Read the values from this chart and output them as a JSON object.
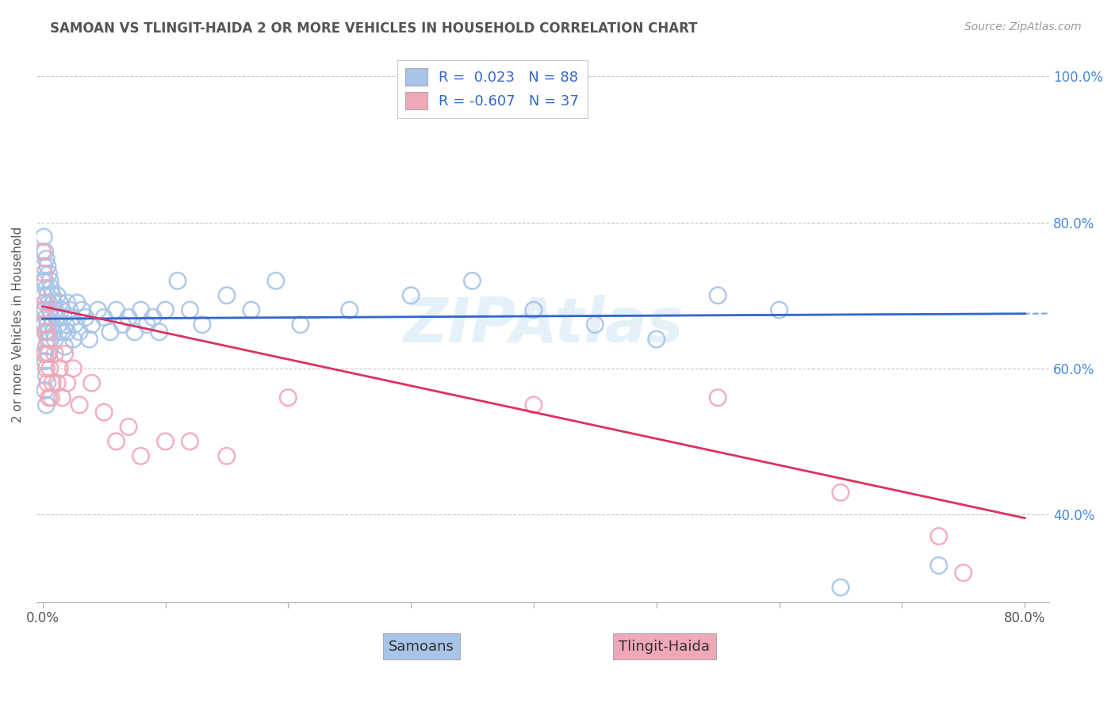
{
  "title": "SAMOAN VS TLINGIT-HAIDA 2 OR MORE VEHICLES IN HOUSEHOLD CORRELATION CHART",
  "source": "Source: ZipAtlas.com",
  "ylabel": "2 or more Vehicles in Household",
  "xlabel_samoans": "Samoans",
  "xlabel_tlingit": "Tlingit-Haida",
  "xlim": [
    -0.005,
    0.82
  ],
  "ylim": [
    0.28,
    1.04
  ],
  "xtick_positions": [
    0.0,
    0.1,
    0.2,
    0.3,
    0.4,
    0.5,
    0.6,
    0.7,
    0.8
  ],
  "xticklabels_show": [
    "0.0%",
    "",
    "",
    "",
    "",
    "",
    "",
    "",
    "80.0%"
  ],
  "yticks": [
    0.4,
    0.6,
    0.8,
    1.0
  ],
  "yticklabels": [
    "40.0%",
    "60.0%",
    "80.0%",
    "100.0%"
  ],
  "samoans_R": 0.023,
  "samoans_N": 88,
  "tlingit_R": -0.607,
  "tlingit_N": 37,
  "samoan_color": "#a8c4e8",
  "tlingit_color": "#f0a8b8",
  "samoan_line_color": "#3366cc",
  "tlingit_line_color": "#e03060",
  "ytick_color": "#4488dd",
  "background_color": "#ffffff",
  "grid_color": "#c8c8c8",
  "watermark_color": "#cce4f4",
  "title_color": "#555555",
  "source_color": "#999999",
  "legend_text_color": "#3366cc",
  "samoan_scatter": {
    "x": [
      0.0,
      0.0,
      0.0,
      0.001,
      0.001,
      0.001,
      0.001,
      0.001,
      0.002,
      0.002,
      0.002,
      0.002,
      0.002,
      0.002,
      0.003,
      0.003,
      0.003,
      0.003,
      0.003,
      0.003,
      0.004,
      0.004,
      0.004,
      0.004,
      0.005,
      0.005,
      0.005,
      0.006,
      0.006,
      0.006,
      0.007,
      0.007,
      0.008,
      0.008,
      0.009,
      0.009,
      0.01,
      0.01,
      0.011,
      0.012,
      0.013,
      0.014,
      0.015,
      0.016,
      0.017,
      0.018,
      0.019,
      0.02,
      0.02,
      0.022,
      0.024,
      0.025,
      0.026,
      0.028,
      0.03,
      0.032,
      0.035,
      0.038,
      0.04,
      0.045,
      0.05,
      0.055,
      0.06,
      0.065,
      0.07,
      0.075,
      0.08,
      0.085,
      0.09,
      0.095,
      0.1,
      0.11,
      0.12,
      0.13,
      0.15,
      0.17,
      0.19,
      0.21,
      0.25,
      0.3,
      0.35,
      0.4,
      0.45,
      0.5,
      0.55,
      0.6,
      0.65,
      0.73
    ],
    "y": [
      0.68,
      0.72,
      0.66,
      0.74,
      0.78,
      0.7,
      0.66,
      0.62,
      0.76,
      0.72,
      0.68,
      0.65,
      0.61,
      0.57,
      0.75,
      0.71,
      0.67,
      0.63,
      0.59,
      0.55,
      0.74,
      0.7,
      0.66,
      0.62,
      0.73,
      0.69,
      0.65,
      0.72,
      0.68,
      0.64,
      0.71,
      0.67,
      0.7,
      0.66,
      0.69,
      0.65,
      0.68,
      0.64,
      0.67,
      0.7,
      0.66,
      0.69,
      0.68,
      0.65,
      0.67,
      0.63,
      0.66,
      0.69,
      0.65,
      0.68,
      0.67,
      0.64,
      0.66,
      0.69,
      0.65,
      0.68,
      0.67,
      0.64,
      0.66,
      0.68,
      0.67,
      0.65,
      0.68,
      0.66,
      0.67,
      0.65,
      0.68,
      0.66,
      0.67,
      0.65,
      0.68,
      0.72,
      0.68,
      0.66,
      0.7,
      0.68,
      0.72,
      0.66,
      0.68,
      0.7,
      0.72,
      0.68,
      0.66,
      0.64,
      0.7,
      0.68,
      0.3,
      0.33
    ]
  },
  "tlingit_scatter": {
    "x": [
      0.0,
      0.0,
      0.001,
      0.001,
      0.002,
      0.002,
      0.003,
      0.003,
      0.004,
      0.004,
      0.005,
      0.005,
      0.006,
      0.007,
      0.008,
      0.01,
      0.012,
      0.014,
      0.016,
      0.018,
      0.02,
      0.025,
      0.03,
      0.04,
      0.05,
      0.06,
      0.07,
      0.08,
      0.1,
      0.12,
      0.15,
      0.2,
      0.4,
      0.55,
      0.65,
      0.73,
      0.75
    ],
    "y": [
      0.76,
      0.68,
      0.73,
      0.66,
      0.69,
      0.62,
      0.65,
      0.6,
      0.64,
      0.58,
      0.62,
      0.56,
      0.6,
      0.56,
      0.58,
      0.62,
      0.58,
      0.6,
      0.56,
      0.62,
      0.58,
      0.6,
      0.55,
      0.58,
      0.54,
      0.5,
      0.52,
      0.48,
      0.5,
      0.5,
      0.48,
      0.56,
      0.55,
      0.56,
      0.43,
      0.37,
      0.32
    ]
  },
  "samoan_line_x": [
    0.0,
    0.8
  ],
  "samoan_line_y_start": 0.668,
  "samoan_line_y_end": 0.675,
  "tlingit_line_x": [
    0.0,
    0.8
  ],
  "tlingit_line_y_start": 0.685,
  "tlingit_line_y_end": 0.395
}
